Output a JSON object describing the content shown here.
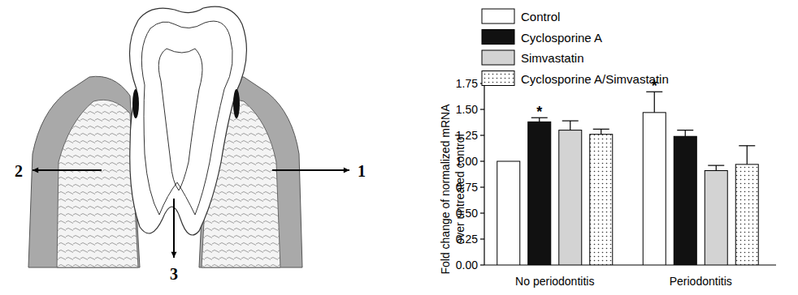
{
  "diagram": {
    "labels": [
      "1",
      "2",
      "3"
    ]
  },
  "chart_data": {
    "type": "bar",
    "y_label": [
      "Fold change of normalized mRNA",
      "over untreated control"
    ],
    "categories": [
      "No periodontitis",
      "Periodontitis"
    ],
    "series": [
      {
        "name": "Control",
        "color": "#ffffff",
        "values": [
          1.0,
          1.47
        ],
        "errors": [
          null,
          0.2
        ],
        "annotations": [
          null,
          "*"
        ]
      },
      {
        "name": "Cyclosporine A",
        "color": "#111111",
        "values": [
          1.38,
          1.24
        ],
        "errors": [
          0.04,
          0.06
        ],
        "annotations": [
          "*",
          null
        ]
      },
      {
        "name": "Simvastatin",
        "color": "#d3d3d3",
        "values": [
          1.3,
          0.91
        ],
        "errors": [
          0.09,
          0.05
        ],
        "annotations": [
          null,
          null
        ]
      },
      {
        "name": "Cyclosporine A/Simvastatin",
        "color": "#ffffff",
        "marker": "dotted",
        "values": [
          1.26,
          0.97
        ],
        "errors": [
          0.05,
          0.18
        ],
        "annotations": [
          null,
          null
        ]
      }
    ],
    "ylim": [
      0,
      1.75
    ],
    "yticks": [
      {
        "value": 0,
        "label": "0.00"
      },
      {
        "value": 0.25,
        "label": "0.25"
      },
      {
        "value": 0.5,
        "label": "0.50"
      },
      {
        "value": 0.75,
        "label": "0.75"
      },
      {
        "value": 1,
        "label": "1.00"
      },
      {
        "value": 1.25,
        "label": "1.25"
      },
      {
        "value": 1.5,
        "label": "1.50"
      },
      {
        "value": 1.75,
        "label": "1.75"
      }
    ],
    "legend": "top",
    "grid": false
  }
}
